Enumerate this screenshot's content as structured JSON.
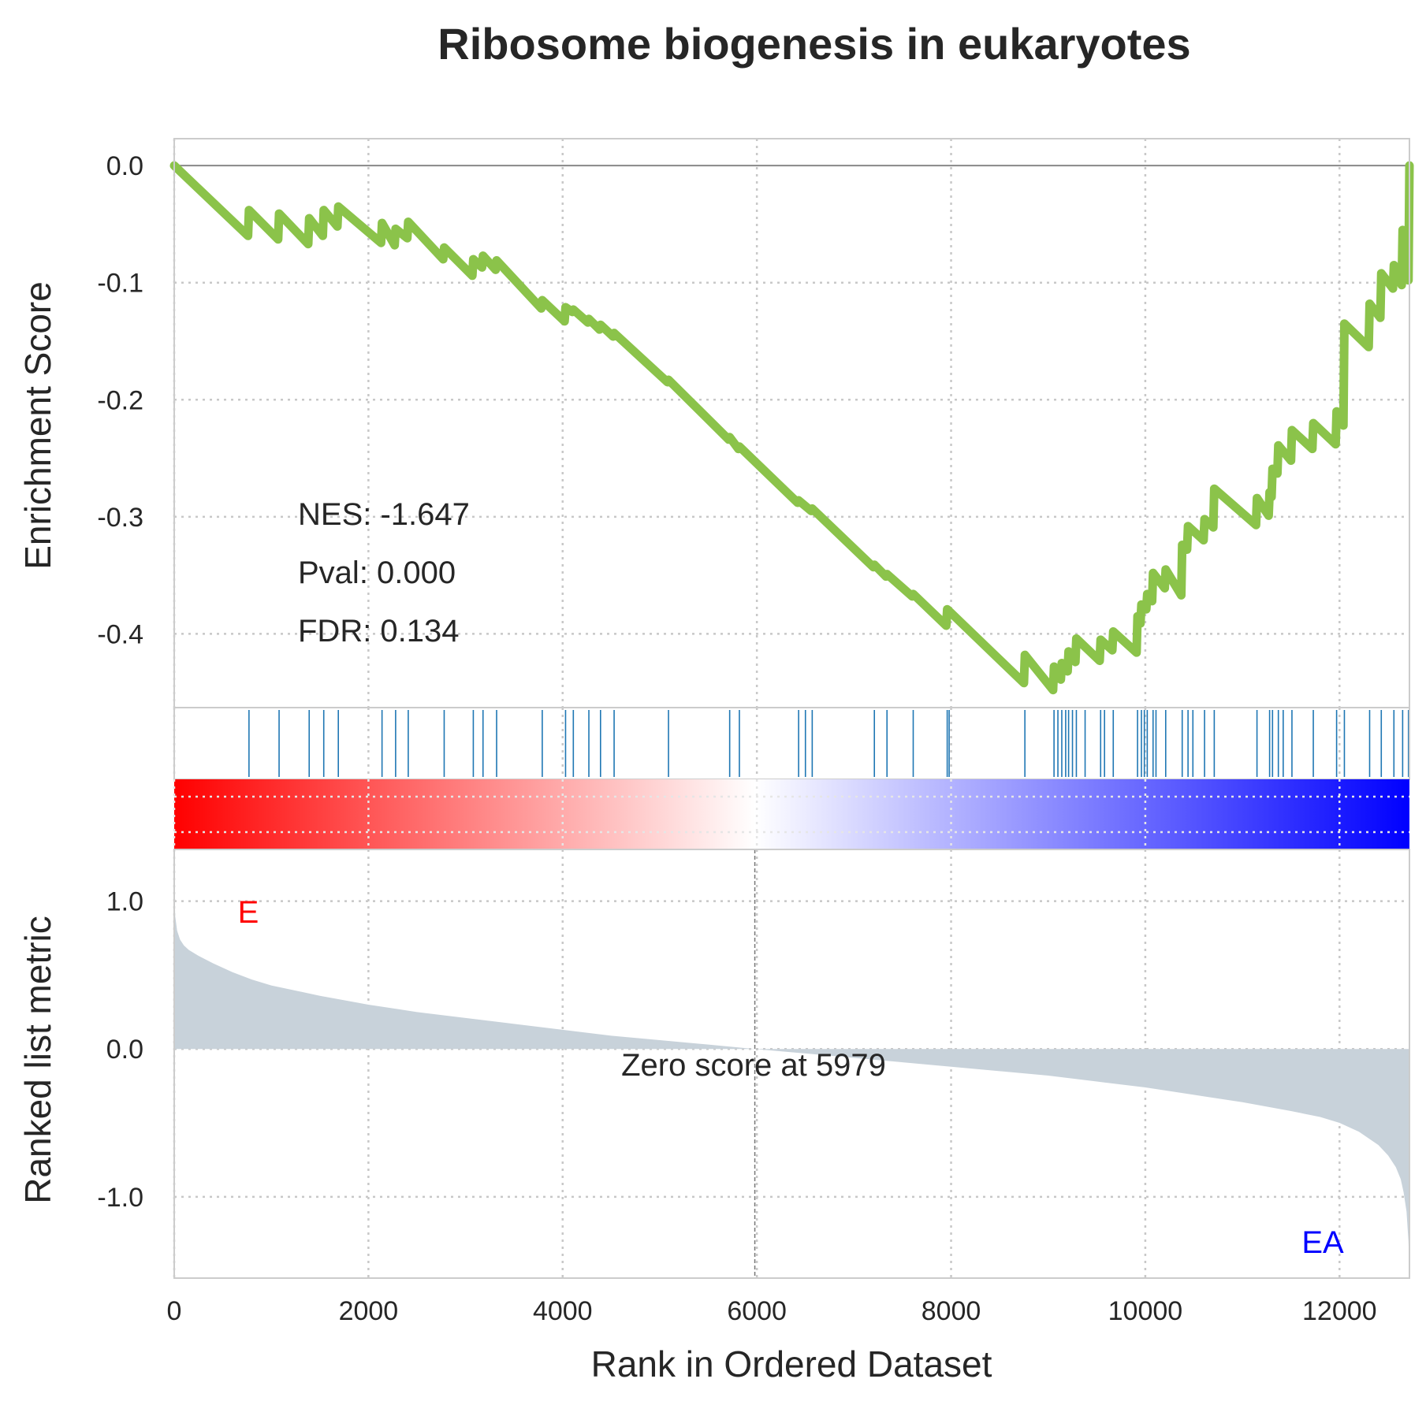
{
  "chart_data": {
    "type": "line",
    "title": "Ribosome biogenesis in eukaryotes",
    "xlabel": "Rank in Ordered Dataset",
    "xlim": [
      0,
      12720
    ],
    "xticks": [
      "0",
      "2000",
      "4000",
      "6000",
      "8000",
      "10000",
      "12000"
    ],
    "colors": {
      "es_line": "#8bc34a",
      "hits": "#1f77b4",
      "ranked_fill": "#c8d2da",
      "pos_label": "#ff0000",
      "neg_label": "#0000ff"
    },
    "es_panel": {
      "ylabel": "Enrichment Score",
      "ylim": [
        -0.463,
        0.023
      ],
      "yticks": [
        "0.0",
        "-0.1",
        "-0.2",
        "-0.3",
        "-0.4"
      ],
      "stats": {
        "nes": "NES: -1.647",
        "pval": "Pval: 0.000",
        "fdr": "FDR: 0.134"
      },
      "running_es": {
        "x": [
          0,
          760,
          770,
          1070,
          1080,
          1380,
          1390,
          1530,
          1540,
          1680,
          1690,
          2130,
          2140,
          2270,
          2280,
          2400,
          2410,
          2770,
          2780,
          3070,
          3080,
          3170,
          3180,
          3310,
          3320,
          3780,
          3790,
          4020,
          4030,
          4100,
          4110,
          4260,
          4270,
          4380,
          4390,
          4520,
          4530,
          5080,
          5090,
          5710,
          5720,
          5810,
          5820,
          6420,
          6430,
          6560,
          6570,
          7200,
          7210,
          7330,
          7340,
          7600,
          7610,
          7950,
          7960,
          8750,
          8760,
          9050,
          9060,
          9130,
          9140,
          9200,
          9210,
          9280,
          9290,
          9530,
          9540,
          9660,
          9670,
          9910,
          9920,
          9950,
          9960,
          10010,
          10020,
          10070,
          10080,
          10200,
          10210,
          10370,
          10380,
          10430,
          10440,
          10600,
          10610,
          10700,
          10710,
          11140,
          11150,
          11270,
          11280,
          11300,
          11310,
          11360,
          11370,
          11500,
          11510,
          11720,
          11730,
          11960,
          11970,
          12040,
          12050,
          12300,
          12310,
          12420,
          12430,
          12550,
          12560,
          12640,
          12650,
          12710,
          12720
        ],
        "y": [
          0.0,
          -0.06,
          -0.038,
          -0.063,
          -0.041,
          -0.067,
          -0.045,
          -0.06,
          -0.038,
          -0.052,
          -0.035,
          -0.066,
          -0.049,
          -0.068,
          -0.054,
          -0.062,
          -0.048,
          -0.08,
          -0.07,
          -0.094,
          -0.08,
          -0.087,
          -0.077,
          -0.089,
          -0.081,
          -0.122,
          -0.115,
          -0.133,
          -0.121,
          -0.125,
          -0.123,
          -0.134,
          -0.131,
          -0.14,
          -0.136,
          -0.146,
          -0.143,
          -0.185,
          -0.183,
          -0.234,
          -0.232,
          -0.242,
          -0.24,
          -0.288,
          -0.286,
          -0.295,
          -0.293,
          -0.343,
          -0.341,
          -0.351,
          -0.349,
          -0.368,
          -0.366,
          -0.393,
          -0.379,
          -0.442,
          -0.418,
          -0.448,
          -0.428,
          -0.439,
          -0.425,
          -0.432,
          -0.415,
          -0.424,
          -0.404,
          -0.423,
          -0.405,
          -0.414,
          -0.398,
          -0.416,
          -0.385,
          -0.391,
          -0.375,
          -0.379,
          -0.366,
          -0.372,
          -0.348,
          -0.361,
          -0.345,
          -0.367,
          -0.324,
          -0.328,
          -0.308,
          -0.32,
          -0.302,
          -0.309,
          -0.276,
          -0.307,
          -0.284,
          -0.299,
          -0.279,
          -0.283,
          -0.259,
          -0.263,
          -0.239,
          -0.252,
          -0.226,
          -0.242,
          -0.22,
          -0.238,
          -0.21,
          -0.222,
          -0.135,
          -0.155,
          -0.118,
          -0.13,
          -0.092,
          -0.105,
          -0.085,
          -0.102,
          -0.055,
          -0.098,
          0.0
        ]
      }
    },
    "hits": {
      "ranks": [
        770,
        1080,
        1390,
        1540,
        1690,
        2140,
        2280,
        2410,
        2780,
        3080,
        3180,
        3320,
        3790,
        4030,
        4110,
        4270,
        4390,
        4530,
        5090,
        5720,
        5820,
        6430,
        6500,
        6570,
        7210,
        7340,
        7610,
        7960,
        7980,
        8760,
        9060,
        9100,
        9140,
        9180,
        9210,
        9250,
        9290,
        9380,
        9540,
        9580,
        9670,
        9920,
        9960,
        9990,
        10020,
        10080,
        10110,
        10210,
        10380,
        10440,
        10490,
        10610,
        10710,
        11150,
        11280,
        11310,
        11370,
        11420,
        11510,
        11730,
        11970,
        12050,
        12310,
        12430,
        12560,
        12650,
        12710
      ]
    },
    "ranked_panel": {
      "ylabel": "Ranked list metric",
      "ylim": [
        -1.55,
        1.35
      ],
      "yticks": [
        "1.0",
        "0.0",
        "-1.0"
      ],
      "zero_cross": 5979,
      "zero_label": "Zero score at 5979",
      "pos_label": "E",
      "neg_label": "EA",
      "metric": {
        "x": [
          0,
          5,
          10,
          30,
          60,
          100,
          150,
          250,
          400,
          600,
          800,
          1000,
          1500,
          2000,
          2500,
          3000,
          3500,
          4000,
          4500,
          5000,
          5500,
          5979,
          6500,
          7000,
          7500,
          8000,
          8500,
          9000,
          9500,
          10000,
          10500,
          11000,
          11500,
          11800,
          12000,
          12200,
          12400,
          12500,
          12580,
          12630,
          12660,
          12690,
          12710,
          12720
        ],
        "y": [
          1.2,
          1.05,
          0.9,
          0.8,
          0.74,
          0.7,
          0.67,
          0.63,
          0.58,
          0.52,
          0.47,
          0.43,
          0.36,
          0.3,
          0.25,
          0.21,
          0.17,
          0.13,
          0.09,
          0.06,
          0.03,
          0.0,
          -0.03,
          -0.06,
          -0.09,
          -0.12,
          -0.15,
          -0.18,
          -0.22,
          -0.26,
          -0.31,
          -0.36,
          -0.42,
          -0.46,
          -0.5,
          -0.56,
          -0.65,
          -0.72,
          -0.8,
          -0.88,
          -0.97,
          -1.1,
          -1.3,
          -1.5
        ]
      }
    }
  }
}
